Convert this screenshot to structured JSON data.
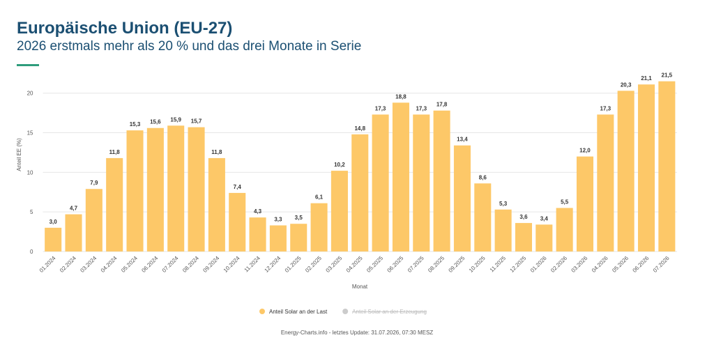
{
  "chart_data": {
    "type": "bar",
    "title": "Europäische Union (EU-27)",
    "subtitle": "2026 erstmals mehr als 20 % und das drei Monate in Serie",
    "x_label": "Monat",
    "y_label": "Anteil EE (%)",
    "categories": [
      "01.2024",
      "02.2024",
      "03.2024",
      "04.2024",
      "05.2024",
      "06.2024",
      "07.2024",
      "08.2024",
      "09.2024",
      "10.2024",
      "11.2024",
      "12.2024",
      "01.2025",
      "02.2025",
      "03.2025",
      "04.2025",
      "05.2025",
      "06.2025",
      "07.2025",
      "08.2025",
      "09.2025",
      "10.2025",
      "11.2025",
      "12.2025",
      "01.2026",
      "02.2026",
      "03.2026",
      "04.2026",
      "05.2026",
      "06.2026",
      "07.2026"
    ],
    "series": [
      {
        "name": "Anteil Solar an der Last",
        "color": "#fdc868",
        "values": [
          3.0,
          4.7,
          7.9,
          11.8,
          15.3,
          15.6,
          15.9,
          15.7,
          11.8,
          7.4,
          4.3,
          3.3,
          3.5,
          6.1,
          10.2,
          14.8,
          17.3,
          18.8,
          17.3,
          17.8,
          13.4,
          8.6,
          5.3,
          3.6,
          3.4,
          5.5,
          12.0,
          17.3,
          20.3,
          21.1,
          21.5
        ],
        "value_labels": [
          "3,0",
          "4,7",
          "7,9",
          "11,8",
          "15,3",
          "15,6",
          "15,9",
          "15,7",
          "11,8",
          "7,4",
          "4,3",
          "3,3",
          "3,5",
          "6,1",
          "10,2",
          "14,8",
          "17,3",
          "18,8",
          "17,3",
          "17,8",
          "13,4",
          "8,6",
          "5,3",
          "3,6",
          "3,4",
          "5,5",
          "12,0",
          "17,3",
          "20,3",
          "21,1",
          "21,5"
        ]
      },
      {
        "name": "Anteil Solar an der Erzeugung",
        "color": "#cccccc",
        "visible": false
      }
    ],
    "ylim": [
      0,
      22
    ],
    "yticks": [
      0,
      5,
      10,
      15,
      20
    ],
    "grid": true,
    "footer": "Energy-Charts.info - letztes Update: 31.07.2026, 07:30 MESZ"
  }
}
